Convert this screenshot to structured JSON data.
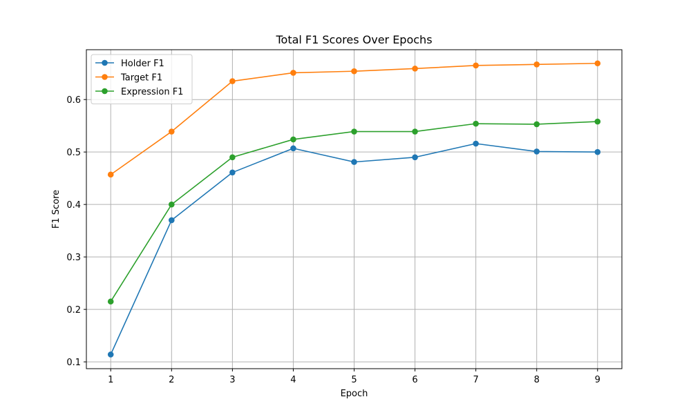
{
  "chart_data": {
    "type": "line",
    "title": "Total F1 Scores Over Epochs",
    "xlabel": "Epoch",
    "ylabel": "F1 Score",
    "x": [
      1,
      2,
      3,
      4,
      5,
      6,
      7,
      8,
      9
    ],
    "xlim": [
      0.6,
      9.4
    ],
    "ylim": [
      0.087,
      0.695
    ],
    "xticks": [
      1,
      2,
      3,
      4,
      5,
      6,
      7,
      8,
      9
    ],
    "yticks": [
      0.1,
      0.2,
      0.3,
      0.4,
      0.5,
      0.6
    ],
    "ytick_labels": [
      "0.1",
      "0.2",
      "0.3",
      "0.4",
      "0.5",
      "0.6"
    ],
    "grid": true,
    "legend_position": "top-left",
    "series": [
      {
        "name": "Holder F1",
        "color": "#1f77b4",
        "marker": "circle",
        "values": [
          0.114,
          0.37,
          0.461,
          0.507,
          0.481,
          0.49,
          0.516,
          0.501,
          0.5
        ]
      },
      {
        "name": "Target F1",
        "color": "#ff7f0e",
        "marker": "circle",
        "values": [
          0.457,
          0.539,
          0.635,
          0.651,
          0.654,
          0.659,
          0.665,
          0.667,
          0.669
        ]
      },
      {
        "name": "Expression F1",
        "color": "#2ca02c",
        "marker": "circle",
        "values": [
          0.215,
          0.4,
          0.49,
          0.524,
          0.539,
          0.539,
          0.554,
          0.553,
          0.558
        ]
      }
    ]
  }
}
